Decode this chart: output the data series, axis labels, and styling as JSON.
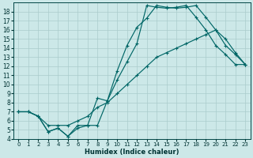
{
  "xlabel": "Humidex (Indice chaleur)",
  "background_color": "#cce8e8",
  "grid_color": "#aacccc",
  "line_color": "#006666",
  "xlim": [
    -0.5,
    23.5
  ],
  "ylim": [
    4,
    19
  ],
  "xticks": [
    0,
    1,
    2,
    3,
    4,
    5,
    6,
    7,
    8,
    9,
    10,
    11,
    12,
    13,
    14,
    15,
    16,
    17,
    18,
    19,
    20,
    21,
    22,
    23
  ],
  "yticks": [
    4,
    5,
    6,
    7,
    8,
    9,
    10,
    11,
    12,
    13,
    14,
    15,
    16,
    17,
    18
  ],
  "line1_x": [
    0,
    1,
    2,
    3,
    4,
    5,
    6,
    7,
    8,
    9,
    10,
    11,
    12,
    13,
    14,
    15,
    16,
    17,
    18,
    19,
    20,
    21,
    22,
    23
  ],
  "line1_y": [
    7.0,
    7.0,
    6.5,
    4.8,
    5.2,
    4.3,
    5.2,
    5.5,
    8.5,
    8.2,
    11.5,
    14.3,
    16.3,
    17.3,
    18.7,
    18.5,
    18.4,
    18.5,
    18.7,
    17.4,
    16.0,
    14.3,
    13.3,
    12.2
  ],
  "line2_x": [
    0,
    1,
    2,
    3,
    4,
    5,
    6,
    7,
    8,
    9,
    10,
    11,
    12,
    13,
    14,
    15,
    16,
    17,
    18,
    19,
    20,
    21,
    22,
    23
  ],
  "line2_y": [
    7.0,
    7.0,
    6.5,
    4.8,
    5.2,
    4.3,
    5.5,
    5.5,
    5.5,
    8.2,
    10.5,
    12.5,
    14.5,
    18.7,
    18.5,
    18.4,
    18.5,
    18.7,
    17.4,
    16.0,
    14.3,
    13.3,
    12.2,
    12.2
  ],
  "line3_x": [
    0,
    1,
    2,
    3,
    4,
    5,
    6,
    7,
    8,
    9,
    10,
    11,
    12,
    13,
    14,
    15,
    16,
    17,
    18,
    19,
    20,
    21,
    22,
    23
  ],
  "line3_y": [
    7.0,
    7.0,
    6.5,
    5.5,
    5.5,
    5.5,
    6.0,
    6.5,
    7.5,
    8.0,
    9.0,
    10.0,
    11.0,
    12.0,
    13.0,
    13.5,
    14.0,
    14.5,
    15.0,
    15.5,
    16.0,
    15.0,
    13.5,
    12.2
  ]
}
